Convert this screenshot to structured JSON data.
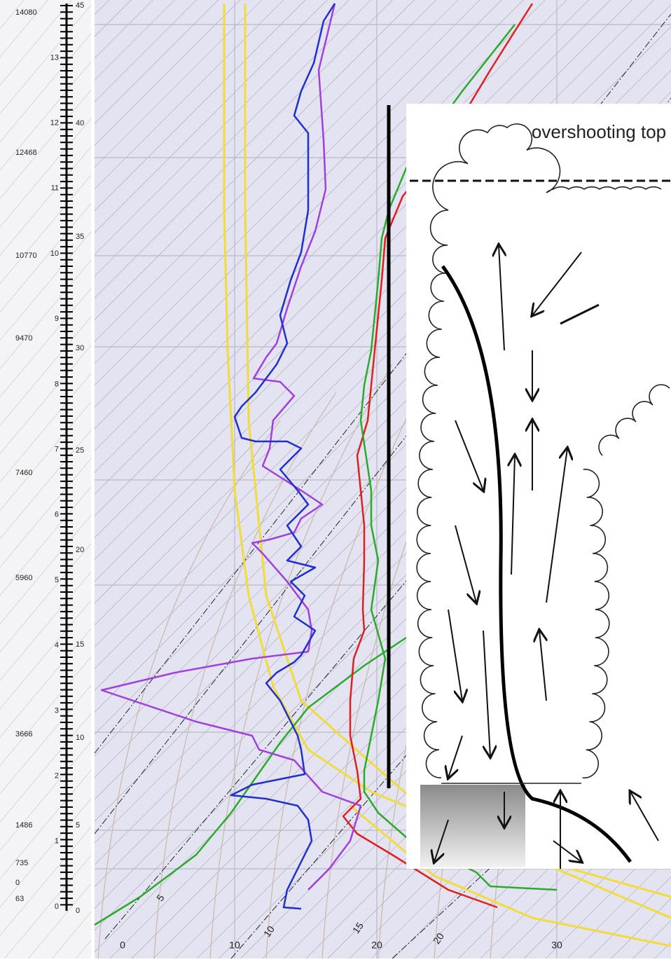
{
  "altitude_labels": [
    "14080",
    "12468",
    "10770",
    "9470",
    "7460",
    "5960",
    "3666",
    "1486",
    "735",
    "0",
    "63"
  ],
  "km_ticks": [
    "0",
    "1",
    "2",
    "3",
    "4",
    "5",
    "6",
    "7",
    "8",
    "9",
    "10",
    "11",
    "12",
    "13"
  ],
  "kft_ticks": [
    "0",
    "5",
    "10",
    "15",
    "20",
    "25",
    "30",
    "35",
    "40",
    "45"
  ],
  "temperature_labels": [
    "0",
    "10",
    "20",
    "30"
  ],
  "mixing_ratio_labels": [
    "5",
    "10",
    "15",
    "20"
  ],
  "inset": {
    "label": "overshooting top"
  }
}
